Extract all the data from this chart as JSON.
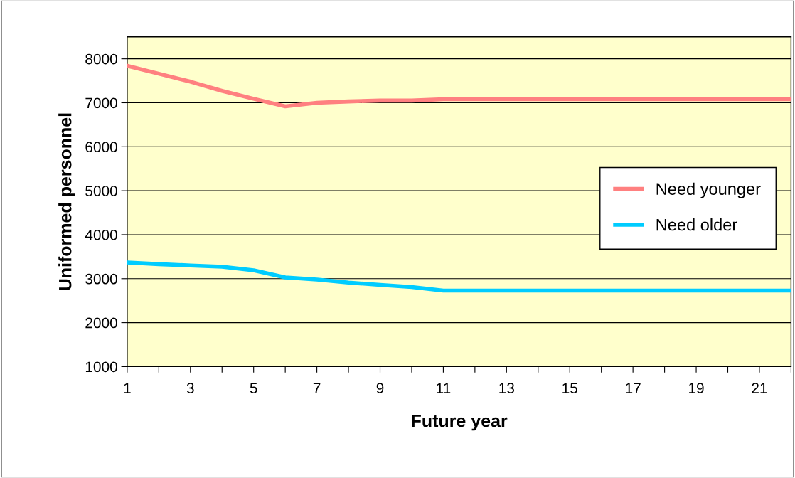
{
  "chart_data": {
    "type": "line",
    "xlabel": "Future year",
    "ylabel": "Uniformed personnel",
    "x": [
      1,
      2,
      3,
      4,
      5,
      6,
      7,
      8,
      9,
      10,
      11,
      12,
      13,
      14,
      15,
      16,
      17,
      18,
      19,
      20,
      21,
      22
    ],
    "series": [
      {
        "name": "Need younger",
        "color": "#ff8080",
        "values": [
          7840,
          7660,
          7480,
          7270,
          7090,
          6920,
          7000,
          7030,
          7050,
          7050,
          7080,
          7080,
          7080,
          7080,
          7080,
          7080,
          7080,
          7080,
          7080,
          7080,
          7080,
          7080
        ]
      },
      {
        "name": "Need older",
        "color": "#00ccff",
        "values": [
          3370,
          3330,
          3300,
          3270,
          3190,
          3030,
          2980,
          2910,
          2860,
          2810,
          2730,
          2730,
          2730,
          2730,
          2730,
          2730,
          2730,
          2730,
          2730,
          2730,
          2730,
          2730
        ]
      }
    ],
    "xlim": [
      1,
      22
    ],
    "xticks": [
      1,
      {
        "value": 2,
        "label": null
      },
      3,
      {
        "value": 4,
        "label": null
      },
      5,
      {
        "value": 6,
        "label": null
      },
      7,
      {
        "value": 8,
        "label": null
      },
      9,
      {
        "value": 10,
        "label": null
      },
      11,
      {
        "value": 12,
        "label": null
      },
      13,
      {
        "value": 14,
        "label": null
      },
      15,
      {
        "value": 16,
        "label": null
      },
      17,
      {
        "value": 18,
        "label": null
      },
      19,
      {
        "value": 20,
        "label": null
      },
      21,
      {
        "value": 22,
        "label": null
      }
    ],
    "ylim": [
      1000,
      8500
    ],
    "yticks": [
      1000,
      2000,
      3000,
      4000,
      5000,
      6000,
      7000,
      8000
    ],
    "grid": "y",
    "legend": "right",
    "marker": "none",
    "line_style": "solid"
  }
}
